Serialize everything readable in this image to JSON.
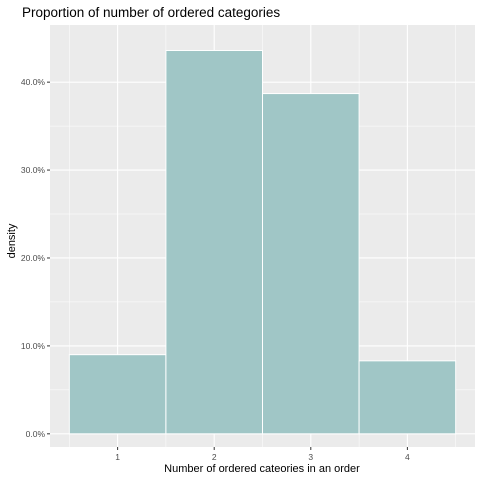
{
  "chart_data": {
    "type": "bar",
    "title": "Proportion of number of ordered categories",
    "xlabel": "Number of ordered cateories in an order",
    "ylabel": "density",
    "categories": [
      "1",
      "2",
      "3",
      "4"
    ],
    "values": [
      0.09,
      0.436,
      0.387,
      0.083
    ],
    "ylim": [
      -0.015,
      0.465
    ],
    "y_ticks": [
      0.0,
      0.1,
      0.2,
      0.3,
      0.4
    ],
    "y_tick_labels": [
      "0.0%",
      "10.0%",
      "20.0%",
      "30.0%",
      "40.0%"
    ],
    "grid": true,
    "colors": {
      "bar_fill": "#a0c6c6",
      "bar_outline": "#ffffff",
      "panel_background": "#ebebeb",
      "grid_major": "#ffffff",
      "tick": "#333333"
    }
  }
}
